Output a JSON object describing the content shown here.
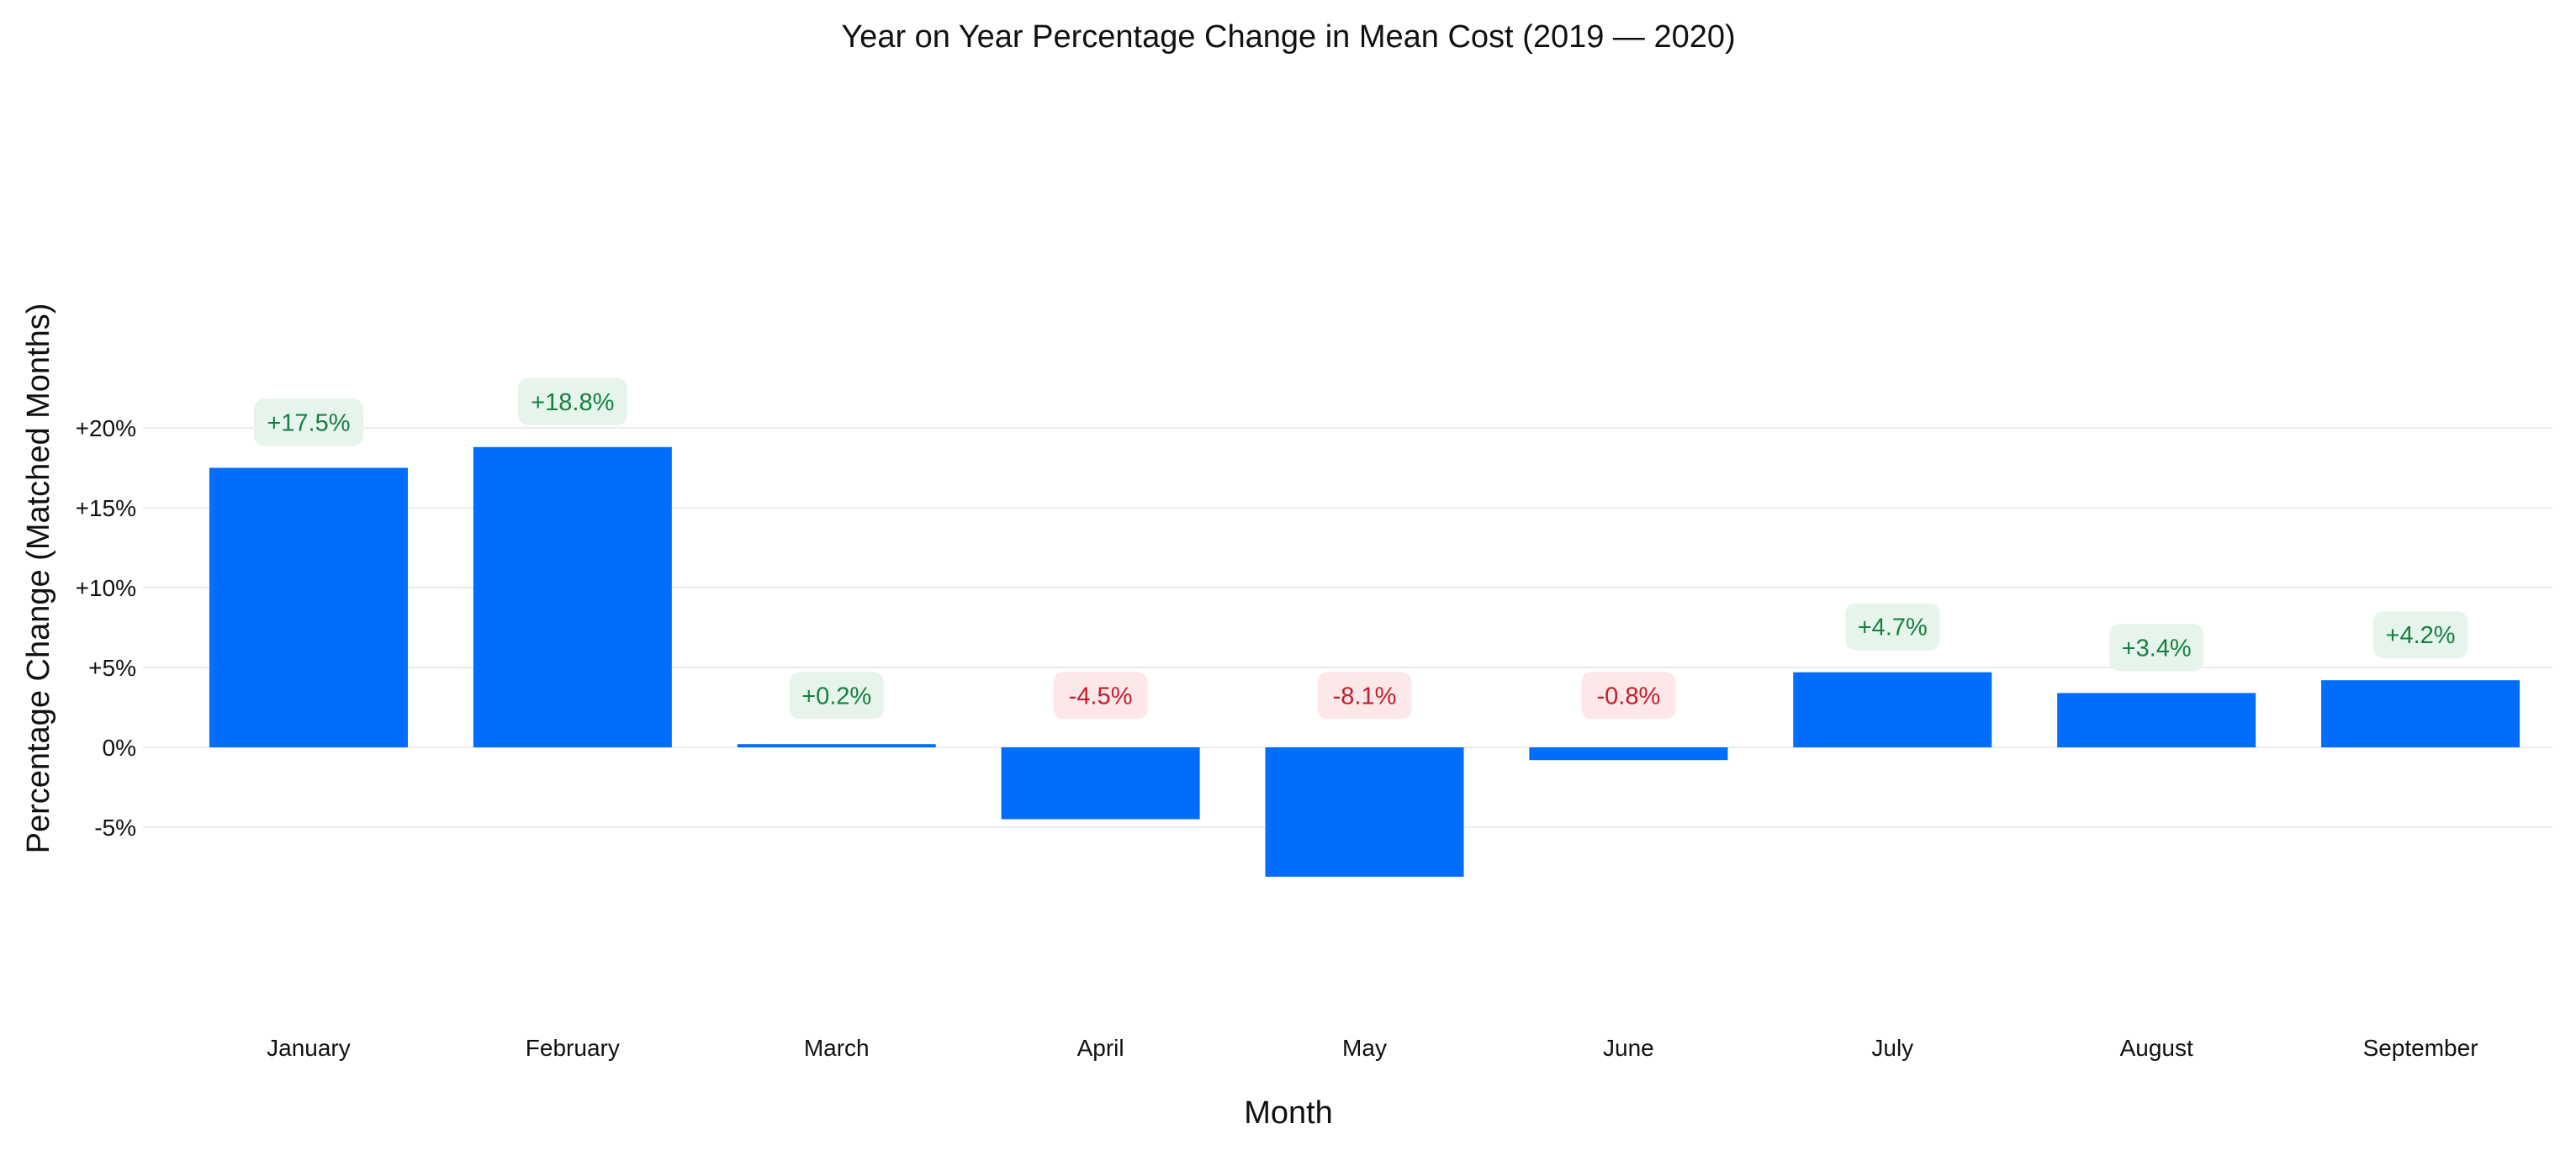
{
  "chart_data": {
    "type": "bar",
    "title": "Year on Year Percentage Change in Mean Cost (2019 — 2020)",
    "xlabel": "Month",
    "ylabel": "Percentage Change (Matched Months)",
    "categories": [
      "January",
      "February",
      "March",
      "April",
      "May",
      "June",
      "July",
      "August",
      "September"
    ],
    "values": [
      17.5,
      18.8,
      0.2,
      -4.5,
      -8.1,
      -0.8,
      4.7,
      3.4,
      4.2
    ],
    "data_labels": [
      "+17.5%",
      "+18.8%",
      "+0.2%",
      "-4.5%",
      "-8.1%",
      "-0.8%",
      "+4.7%",
      "+3.4%",
      "+4.2%"
    ],
    "yticks": [
      20,
      15,
      10,
      5,
      0,
      -5
    ],
    "ytick_labels": [
      "+20%",
      "+15%",
      "+10%",
      "+5%",
      "0%",
      "-5%"
    ],
    "ylim": [
      -8.6,
      20.5
    ],
    "grid": true,
    "legend": "none",
    "colors": {
      "bar": "#006dfc",
      "grid": "#ebebeb",
      "positive_label_bg": "#e6f4ec",
      "positive_label_text": "#168040",
      "negative_label_bg": "#fce7e9",
      "negative_label_text": "#c81b2a"
    }
  }
}
